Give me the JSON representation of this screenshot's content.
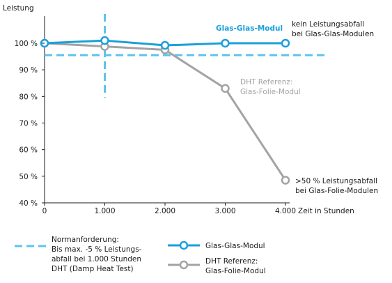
{
  "chart_data": {
    "type": "line",
    "ylabel": "Leistung",
    "xlabel": "Zeit in Stunden",
    "x": [
      0,
      1000,
      2000,
      3000,
      4000
    ],
    "x_tick_labels": [
      "0",
      "1.000",
      "2.000",
      "3.000",
      "4.000"
    ],
    "y_ticks": [
      40,
      50,
      60,
      70,
      80,
      90,
      100
    ],
    "y_tick_labels": [
      "40 %",
      "50 %",
      "60 %",
      "70 %",
      "80 %",
      "90 %",
      "100 %"
    ],
    "xlim": [
      0,
      4000
    ],
    "ylim": [
      40,
      104
    ],
    "grid": false,
    "series": [
      {
        "name": "Glas-Glas-Modul",
        "color": "#1a9fdc",
        "values": [
          100,
          101,
          99.2,
          100,
          100
        ]
      },
      {
        "name": "DHT Referenz: Glas-Folie-Modul",
        "color": "#a3a3a3",
        "values": [
          100,
          98.8,
          97.5,
          83,
          48.5
        ]
      }
    ],
    "reference_lines": [
      {
        "axis": "y",
        "value": 95.5,
        "style": "dashed",
        "color": "#5cc3ee"
      },
      {
        "axis": "x",
        "value": 1000,
        "style": "dashed",
        "color": "#5cc3ee"
      }
    ],
    "annotations": {
      "glas_glas_inline": "Glas-Glas-Modul",
      "glas_glas_note": [
        "kein Leistungsabfall",
        "bei Glas-Glas-Modulen"
      ],
      "dht_inline": [
        "DHT Referenz:",
        "Glas-Folie-Modul"
      ],
      "dht_note": [
        ">50 % Leistungsabfall",
        "bei Glas-Folie-Modulen"
      ]
    },
    "legend": {
      "placement": "bottom",
      "norm": [
        "Normanforderung:",
        "Bis max. -5 % Leistungs-",
        "abfall bei 1.000 Stunden",
        "DHT (Damp Heat Test)"
      ],
      "glas_glas": "Glas-Glas-Modul",
      "dht": [
        "DHT Referenz:",
        "Glas-Folie-Modul"
      ]
    }
  }
}
